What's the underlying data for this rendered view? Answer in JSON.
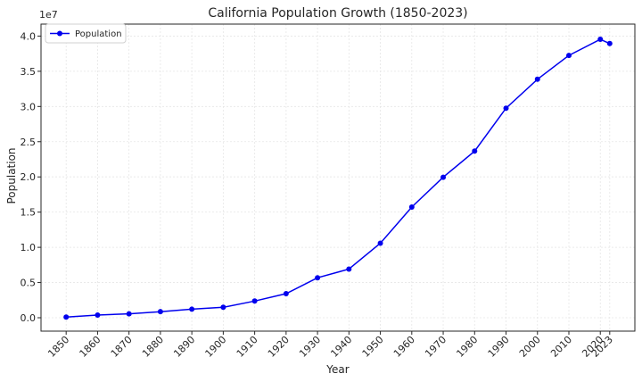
{
  "chart_data": {
    "type": "line",
    "title": "California Population Growth (1850-2023)",
    "xlabel": "Year",
    "ylabel": "Population",
    "y_offset_label": "1e7",
    "x": [
      1850,
      1860,
      1870,
      1880,
      1890,
      1900,
      1910,
      1920,
      1930,
      1940,
      1950,
      1960,
      1970,
      1980,
      1990,
      2000,
      2010,
      2020,
      2023
    ],
    "x_tick_labels": [
      "1850",
      "1860",
      "1870",
      "1880",
      "1890",
      "1900",
      "1910",
      "1920",
      "1930",
      "1940",
      "1950",
      "1960",
      "1970",
      "1980",
      "1990",
      "2000",
      "2010",
      "2020",
      "2023"
    ],
    "series": [
      {
        "name": "Population",
        "color": "#0000ee",
        "values": [
          92597,
          379994,
          560247,
          864694,
          1213398,
          1485053,
          2377549,
          3426861,
          5677251,
          6907387,
          10586223,
          15717204,
          19953134,
          23667902,
          29760021,
          33871648,
          37253956,
          39538223,
          38940231
        ]
      }
    ],
    "ylim": [
      0,
      40000000
    ],
    "y_ticks": [
      0,
      5000000,
      10000000,
      15000000,
      20000000,
      25000000,
      30000000,
      35000000,
      40000000
    ],
    "y_tick_labels": [
      "0.0",
      "0.5",
      "1.0",
      "1.5",
      "2.0",
      "2.5",
      "3.0",
      "3.5",
      "4.0"
    ],
    "grid": true,
    "legend_position": "top-left"
  }
}
